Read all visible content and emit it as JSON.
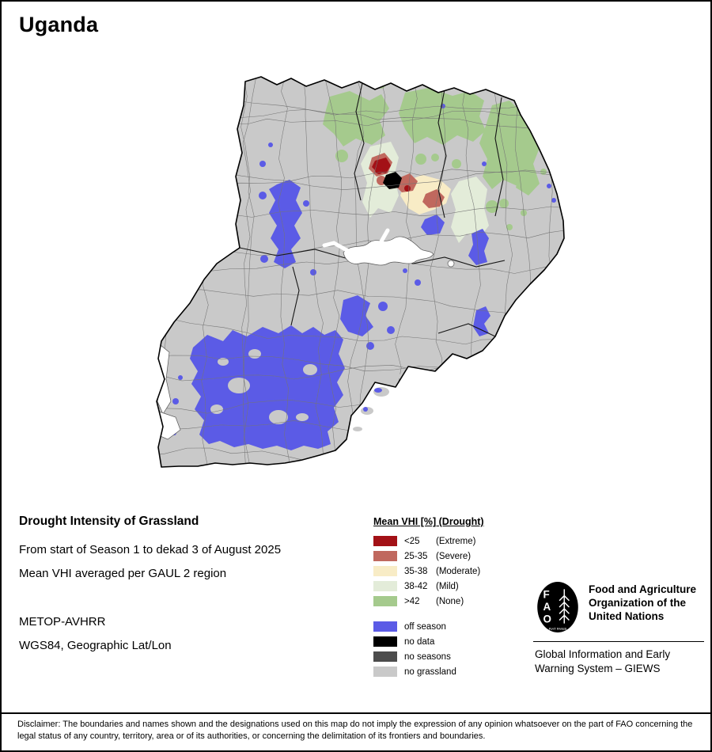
{
  "title": "Uganda",
  "map": {
    "colors": {
      "base": "#c9c9c9",
      "none": "#a5ca8d",
      "mild": "#e3ecd9",
      "moderate": "#f8ecc6",
      "severe": "#c0685e",
      "extreme": "#a31116",
      "off_season": "#5b5be6",
      "no_data": "#000000",
      "no_seasons": "#4c4c4c",
      "no_grassland": "#c9c9c9",
      "water": "#ffffff",
      "district_line": "#757575",
      "border": "#000000"
    }
  },
  "info": {
    "heading": "Drought Intensity of Grassland",
    "line1": "From start of Season 1 to dekad 3 of August 2025",
    "line2": "Mean VHI averaged per GAUL 2 region",
    "line3": "METOP-AVHRR",
    "line4": "WGS84, Geographic Lat/Lon"
  },
  "legend": {
    "header": "Mean VHI [%] (Drought)",
    "vhi_items": [
      {
        "range": "<25",
        "label": "(Extreme)",
        "color": "#a31116"
      },
      {
        "range": "25-35",
        "label": "(Severe)",
        "color": "#c0685e"
      },
      {
        "range": "35-38",
        "label": "(Moderate)",
        "color": "#f8ecc6"
      },
      {
        "range": "38-42",
        "label": "(Mild)",
        "color": "#e3ecd9"
      },
      {
        "range": ">42",
        "label": "(None)",
        "color": "#a5ca8d"
      }
    ],
    "season_items": [
      {
        "label": "off season",
        "color": "#5b5be6"
      },
      {
        "label": "no data",
        "color": "#000000"
      },
      {
        "label": "no seasons",
        "color": "#4c4c4c"
      },
      {
        "label": "no grassland",
        "color": "#c9c9c9"
      }
    ]
  },
  "fao": {
    "logo_letters": [
      "F",
      "A",
      "O"
    ],
    "logo_motto": "FIAT PANIS",
    "org_name": "Food and Agriculture\nOrganization of the\nUnited Nations",
    "giews": "Global Information and Early\nWarning System – GIEWS"
  },
  "disclaimer": "Disclaimer: The boundaries and names shown and the designations used on this map do not imply the expression of any opinion whatsoever on the part of FAO concerning the legal status of any country, territory, area or of its authorities, or concerning the delimitation of its frontiers and boundaries."
}
